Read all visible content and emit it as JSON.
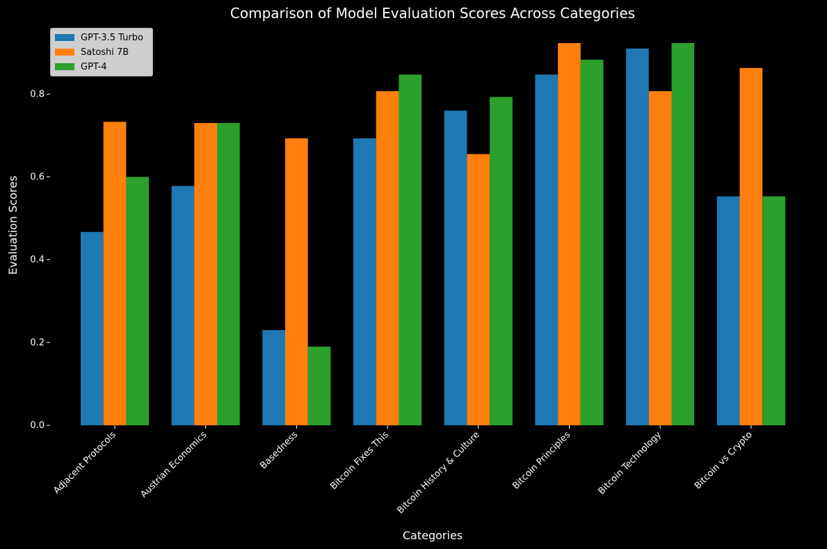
{
  "chart_data": {
    "type": "bar",
    "title": "Comparison of Model Evaluation Scores Across Categories",
    "xlabel": "Categories",
    "ylabel": "Evaluation Scores",
    "ylim": [
      0,
      0.96
    ],
    "yticks": [
      "0.0",
      "0.2",
      "0.4",
      "0.6",
      "0.8"
    ],
    "ytick_values": [
      0,
      0.2,
      0.4,
      0.6,
      0.8
    ],
    "grid": false,
    "legend_position": "top-left",
    "categories": [
      "Adjacent Protocols",
      "Austrian Economics",
      "Basedness",
      "Bitcoin Fixes This",
      "Bitcoin History & Culture",
      "Bitcoin Principles",
      "Bitcoin Technology",
      "Bitcoin vs Crypto"
    ],
    "series": [
      {
        "name": "GPT-3.5 Turbo",
        "color": "#1f77b4",
        "values": [
          0.467,
          0.578,
          0.23,
          0.693,
          0.76,
          0.847,
          0.91,
          0.553
        ]
      },
      {
        "name": "Satoshi 7B",
        "color": "#ff7f0e",
        "values": [
          0.733,
          0.73,
          0.693,
          0.807,
          0.655,
          0.923,
          0.807,
          0.863
        ]
      },
      {
        "name": "GPT-4",
        "color": "#2ca02c",
        "values": [
          0.6,
          0.73,
          0.19,
          0.847,
          0.793,
          0.883,
          0.923,
          0.553
        ]
      }
    ]
  }
}
